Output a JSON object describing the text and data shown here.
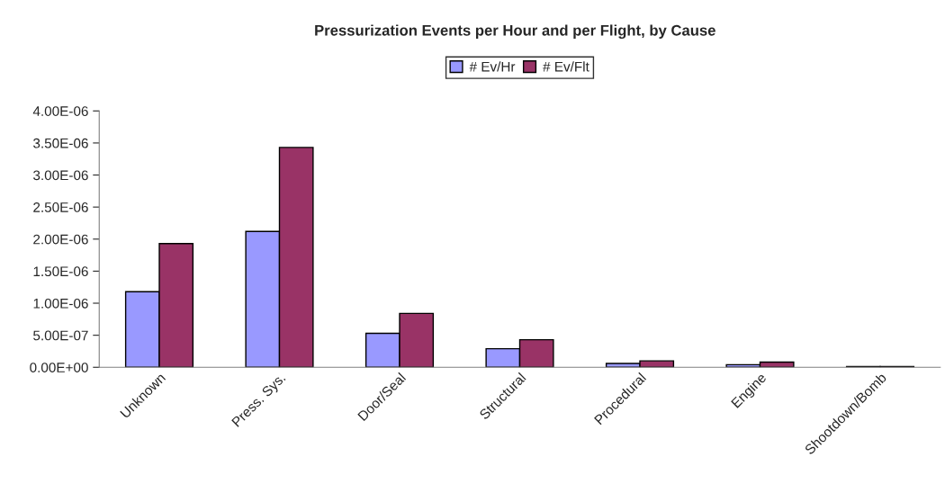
{
  "chart_data": {
    "type": "bar",
    "title": "Pressurization Events per Hour and per Flight, by Cause",
    "categories": [
      "Unknown",
      "Press. Sys.",
      "Door/Seal",
      "Structural",
      "Procedural",
      "Engine",
      "Shootdown/Bomb"
    ],
    "series": [
      {
        "name": "# Ev/Hr",
        "color": "#9999ff",
        "values": [
          1.18e-06,
          2.12e-06,
          5.3e-07,
          2.9e-07,
          6e-08,
          4e-08,
          1e-08
        ]
      },
      {
        "name": "# Ev/Flt",
        "color": "#993366",
        "values": [
          1.93e-06,
          3.43e-06,
          8.4e-07,
          4.3e-07,
          1e-07,
          8e-08,
          1e-08
        ]
      }
    ],
    "ylim": [
      0,
      4e-06
    ],
    "yticks": [
      {
        "value": 0,
        "label": "0.00E+00"
      },
      {
        "value": 5e-07,
        "label": "5.00E-07"
      },
      {
        "value": 1e-06,
        "label": "1.00E-06"
      },
      {
        "value": 1.5e-06,
        "label": "1.50E-06"
      },
      {
        "value": 2e-06,
        "label": "2.00E-06"
      },
      {
        "value": 2.5e-06,
        "label": "2.50E-06"
      },
      {
        "value": 3e-06,
        "label": "3.00E-06"
      },
      {
        "value": 3.5e-06,
        "label": "3.50E-06"
      },
      {
        "value": 4e-06,
        "label": "4.00E-06"
      }
    ],
    "grid": false,
    "legend": "top"
  }
}
